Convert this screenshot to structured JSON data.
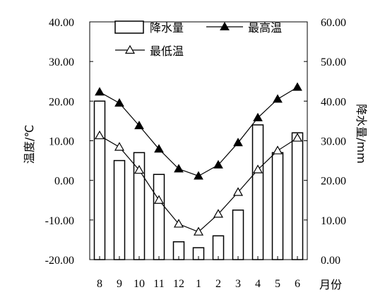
{
  "chart_data": {
    "type": "bar-line combo",
    "categories": [
      "8",
      "9",
      "10",
      "11",
      "12",
      "1",
      "2",
      "3",
      "4",
      "5",
      "6"
    ],
    "x_axis_label": "月份",
    "y_left": {
      "label": "温度/℃",
      "ylim": [
        -20,
        40
      ],
      "ticks": [
        "-20.00",
        "-10.00",
        "0.00",
        "10.00",
        "20.00",
        "30.00",
        "40.00"
      ]
    },
    "y_right": {
      "label": "降水量/mm",
      "ylim": [
        0,
        60
      ],
      "ticks": [
        "0.00",
        "10.00",
        "20.00",
        "30.00",
        "40.00",
        "50.00",
        "60.00"
      ]
    },
    "series": [
      {
        "name": "降水量",
        "kind": "bar",
        "axis": "right",
        "values": [
          40.0,
          25.0,
          27.0,
          21.5,
          4.5,
          3.0,
          6.0,
          12.5,
          34.0,
          27.0,
          32.0
        ]
      },
      {
        "name": "最高温",
        "kind": "line",
        "marker": "filled-triangle",
        "axis": "left",
        "values": [
          22.3,
          19.5,
          13.8,
          7.9,
          2.9,
          1.1,
          3.9,
          9.5,
          15.8,
          20.5,
          23.5
        ]
      },
      {
        "name": "最低温",
        "kind": "line",
        "marker": "open-triangle",
        "axis": "left",
        "values": [
          11.3,
          8.4,
          2.6,
          -5.0,
          -11.0,
          -13.0,
          -8.5,
          -3.0,
          2.7,
          7.5,
          10.7
        ]
      }
    ],
    "legend": {
      "position": "top-center",
      "items": [
        "降水量",
        "最高温",
        "最低温"
      ]
    },
    "grid": false
  }
}
